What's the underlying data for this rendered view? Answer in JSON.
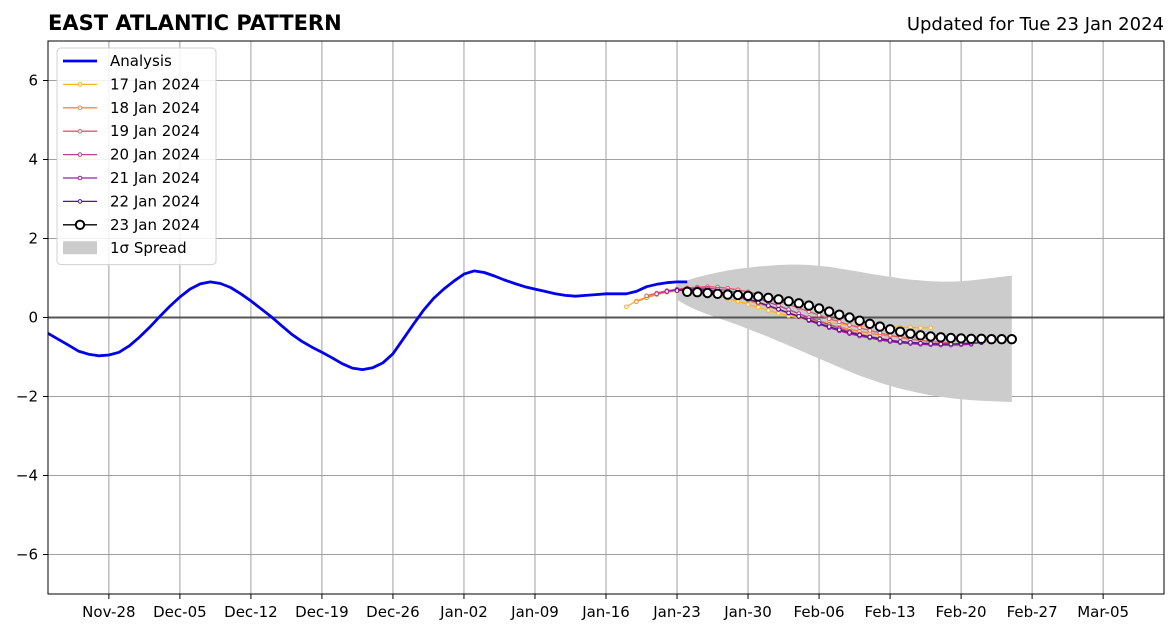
{
  "chart_data": {
    "type": "line",
    "title": "EAST ATLANTIC PATTERN",
    "subtitle": "Updated for Tue 23 Jan 2024",
    "xlabel": "",
    "ylabel": "",
    "xlim": [
      "2023-11-22",
      "2024-03-11"
    ],
    "ylim": [
      -7,
      7
    ],
    "x_ticks": [
      "2023-11-28",
      "2023-12-05",
      "2023-12-12",
      "2023-12-19",
      "2023-12-26",
      "2024-01-02",
      "2024-01-09",
      "2024-01-16",
      "2024-01-23",
      "2024-01-30",
      "2024-02-06",
      "2024-02-13",
      "2024-02-20",
      "2024-02-27",
      "2024-03-05"
    ],
    "x_tick_labels": [
      "Nov-28",
      "Dec-05",
      "Dec-12",
      "Dec-19",
      "Dec-26",
      "Jan-02",
      "Jan-09",
      "Jan-16",
      "Jan-23",
      "Jan-30",
      "Feb-06",
      "Feb-13",
      "Feb-20",
      "Feb-27",
      "Mar-05"
    ],
    "y_ticks": [
      -6,
      -4,
      -2,
      0,
      2,
      4,
      6
    ],
    "y_tick_labels": [
      "−6",
      "−4",
      "−2",
      "0",
      "2",
      "4",
      "6"
    ],
    "grid": true,
    "legend_position": "top-left",
    "series": [
      {
        "name": "Analysis",
        "color": "#0000ee",
        "style": "line",
        "start": "2023-11-22",
        "values": [
          -0.4,
          -0.55,
          -0.7,
          -0.85,
          -0.93,
          -0.97,
          -0.95,
          -0.88,
          -0.72,
          -0.5,
          -0.25,
          0.02,
          0.28,
          0.52,
          0.72,
          0.85,
          0.9,
          0.86,
          0.76,
          0.6,
          0.42,
          0.22,
          0.02,
          -0.2,
          -0.42,
          -0.6,
          -0.75,
          -0.88,
          -1.02,
          -1.17,
          -1.28,
          -1.32,
          -1.27,
          -1.15,
          -0.92,
          -0.55,
          -0.18,
          0.18,
          0.48,
          0.72,
          0.92,
          1.1,
          1.18,
          1.14,
          1.05,
          0.95,
          0.86,
          0.78,
          0.72,
          0.66,
          0.6,
          0.56,
          0.54,
          0.56,
          0.58,
          0.6,
          0.6,
          0.6,
          0.66,
          0.78,
          0.84,
          0.88,
          0.9,
          0.9
        ]
      },
      {
        "name": "17 Jan 2024",
        "color": "#ffb31a",
        "style": "line-markers",
        "start": "2024-01-18",
        "values": [
          0.27,
          0.42,
          0.52,
          0.6,
          0.64,
          0.67,
          0.68,
          0.66,
          0.61,
          0.55,
          0.48,
          0.41,
          0.33,
          0.26,
          0.18,
          0.11,
          0.04,
          -0.01,
          -0.06,
          -0.1,
          -0.13,
          -0.16,
          -0.19,
          -0.21,
          -0.22,
          -0.23,
          -0.24,
          -0.25,
          -0.25,
          -0.26,
          -0.26
        ]
      },
      {
        "name": "18 Jan 2024",
        "color": "#f28b3a",
        "style": "line-markers",
        "start": "2024-01-19",
        "values": [
          0.4,
          0.5,
          0.58,
          0.64,
          0.68,
          0.7,
          0.7,
          0.68,
          0.64,
          0.58,
          0.51,
          0.43,
          0.35,
          0.27,
          0.19,
          0.11,
          0.03,
          -0.04,
          -0.11,
          -0.18,
          -0.24,
          -0.3,
          -0.35,
          -0.4,
          -0.44,
          -0.47,
          -0.49,
          -0.51,
          -0.52,
          -0.52,
          -0.53
        ]
      },
      {
        "name": "19 Jan 2024",
        "color": "#e05a6e",
        "style": "line-markers",
        "start": "2024-01-20",
        "values": [
          0.55,
          0.62,
          0.68,
          0.72,
          0.75,
          0.77,
          0.78,
          0.77,
          0.74,
          0.7,
          0.65,
          0.58,
          0.5,
          0.42,
          0.33,
          0.24,
          0.15,
          0.06,
          -0.03,
          -0.11,
          -0.19,
          -0.26,
          -0.33,
          -0.39,
          -0.45,
          -0.5,
          -0.55,
          -0.58,
          -0.61,
          -0.63,
          -0.64
        ]
      },
      {
        "name": "20 Jan 2024",
        "color": "#c03f8f",
        "style": "line-markers",
        "start": "2024-01-21",
        "values": [
          0.6,
          0.66,
          0.7,
          0.73,
          0.74,
          0.74,
          0.72,
          0.68,
          0.63,
          0.56,
          0.48,
          0.39,
          0.3,
          0.2,
          0.1,
          0.0,
          -0.09,
          -0.18,
          -0.27,
          -0.35,
          -0.42,
          -0.48,
          -0.53,
          -0.57,
          -0.61,
          -0.63,
          -0.65,
          -0.66,
          -0.67,
          -0.67,
          -0.67
        ]
      },
      {
        "name": "21 Jan 2024",
        "color": "#9a1fa8",
        "style": "line-markers",
        "start": "2024-01-22",
        "values": [
          0.66,
          0.7,
          0.72,
          0.72,
          0.7,
          0.66,
          0.61,
          0.55,
          0.47,
          0.39,
          0.3,
          0.21,
          0.11,
          0.02,
          -0.08,
          -0.17,
          -0.26,
          -0.34,
          -0.41,
          -0.47,
          -0.52,
          -0.57,
          -0.61,
          -0.64,
          -0.66,
          -0.68,
          -0.69,
          -0.7,
          -0.7,
          -0.69,
          -0.68
        ]
      },
      {
        "name": "22 Jan 2024",
        "color": "#5a118a",
        "style": "line-markers",
        "start": "2024-01-23",
        "values": [
          0.68,
          0.7,
          0.7,
          0.68,
          0.64,
          0.59,
          0.53,
          0.46,
          0.38,
          0.3,
          0.21,
          0.12,
          0.03,
          -0.06,
          -0.15,
          -0.23,
          -0.31,
          -0.38,
          -0.44,
          -0.49,
          -0.54,
          -0.58,
          -0.61,
          -0.63,
          -0.65,
          -0.66,
          -0.67,
          -0.67,
          -0.66,
          -0.65,
          -0.64
        ]
      },
      {
        "name": "23 Jan 2024",
        "color": "#000000",
        "style": "open-circles",
        "start": "2024-01-24",
        "values": [
          0.65,
          0.64,
          0.62,
          0.6,
          0.58,
          0.57,
          0.55,
          0.53,
          0.5,
          0.46,
          0.41,
          0.36,
          0.3,
          0.23,
          0.15,
          0.07,
          0.0,
          -0.08,
          -0.16,
          -0.23,
          -0.3,
          -0.36,
          -0.41,
          -0.45,
          -0.48,
          -0.5,
          -0.52,
          -0.53,
          -0.54,
          -0.54,
          -0.55,
          -0.55,
          -0.55
        ]
      }
    ],
    "spread": {
      "name": "1σ Spread",
      "color": "#cccccc",
      "start": "2024-01-23",
      "upper": [
        0.85,
        0.94,
        1.02,
        1.08,
        1.14,
        1.19,
        1.23,
        1.26,
        1.29,
        1.31,
        1.33,
        1.34,
        1.34,
        1.33,
        1.31,
        1.28,
        1.24,
        1.2,
        1.16,
        1.11,
        1.07,
        1.03,
        0.99,
        0.96,
        0.94,
        0.92,
        0.91,
        0.91,
        0.92,
        0.94,
        0.97,
        1.0,
        1.03,
        1.06
      ],
      "lower": [
        0.45,
        0.3,
        0.18,
        0.08,
        -0.01,
        -0.1,
        -0.19,
        -0.29,
        -0.39,
        -0.49,
        -0.6,
        -0.71,
        -0.82,
        -0.93,
        -1.04,
        -1.15,
        -1.26,
        -1.37,
        -1.47,
        -1.56,
        -1.65,
        -1.73,
        -1.8,
        -1.86,
        -1.92,
        -1.97,
        -2.01,
        -2.04,
        -2.07,
        -2.09,
        -2.11,
        -2.12,
        -2.13,
        -2.14
      ]
    },
    "legend": {
      "entries": [
        "Analysis",
        "17 Jan 2024",
        "18 Jan 2024",
        "19 Jan 2024",
        "20 Jan 2024",
        "21 Jan 2024",
        "22 Jan 2024",
        "23 Jan 2024",
        "1σ Spread"
      ]
    }
  }
}
